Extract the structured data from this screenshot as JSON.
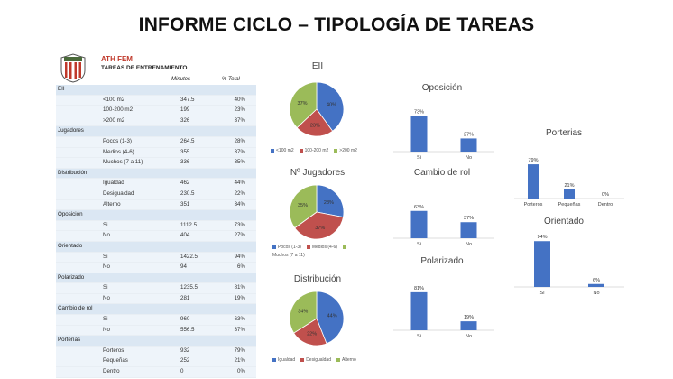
{
  "title": "INFORME CICLO – TIPOLOGÍA DE TAREAS",
  "colors": {
    "blue": "#4472c4",
    "red": "#c0504d",
    "green": "#9bbb59"
  },
  "table": {
    "team": "ATH FEM",
    "subtitle": "TAREAS DE ENTRENAMIENTO",
    "col_minutes": "Minutos",
    "col_total": "% Total",
    "groups": [
      {
        "name": "EII",
        "rows": [
          {
            "label": "<100 m2",
            "minutes": "347.5",
            "pct": "40%"
          },
          {
            "label": "100-200 m2",
            "minutes": "199",
            "pct": "23%"
          },
          {
            "label": ">200 m2",
            "minutes": "326",
            "pct": "37%"
          }
        ]
      },
      {
        "name": "Jugadores",
        "rows": [
          {
            "label": "Pocos (1-3)",
            "minutes": "264.5",
            "pct": "28%"
          },
          {
            "label": "Medios (4-6)",
            "minutes": "355",
            "pct": "37%"
          },
          {
            "label": "Muchos (7 a 11)",
            "minutes": "336",
            "pct": "35%"
          }
        ]
      },
      {
        "name": "Distribución",
        "rows": [
          {
            "label": "Igualdad",
            "minutes": "462",
            "pct": "44%"
          },
          {
            "label": "Desigualdad",
            "minutes": "230.5",
            "pct": "22%"
          },
          {
            "label": "Alterno",
            "minutes": "351",
            "pct": "34%"
          }
        ]
      },
      {
        "name": "Oposición",
        "rows": [
          {
            "label": "Si",
            "minutes": "1112.5",
            "pct": "73%"
          },
          {
            "label": "No",
            "minutes": "404",
            "pct": "27%"
          }
        ]
      },
      {
        "name": "Orientado",
        "rows": [
          {
            "label": "Si",
            "minutes": "1422.5",
            "pct": "94%"
          },
          {
            "label": "No",
            "minutes": "94",
            "pct": "6%"
          }
        ]
      },
      {
        "name": "Polarizado",
        "rows": [
          {
            "label": "Si",
            "minutes": "1235.5",
            "pct": "81%"
          },
          {
            "label": "No",
            "minutes": "281",
            "pct": "19%"
          }
        ]
      },
      {
        "name": "Cambio de rol",
        "rows": [
          {
            "label": "Si",
            "minutes": "960",
            "pct": "63%"
          },
          {
            "label": "No",
            "minutes": "556.5",
            "pct": "37%"
          }
        ]
      },
      {
        "name": "Porterías",
        "rows": [
          {
            "label": "Porteros",
            "minutes": "932",
            "pct": "79%"
          },
          {
            "label": "Pequeñas",
            "minutes": "252",
            "pct": "21%"
          },
          {
            "label": "Dentro",
            "minutes": "0",
            "pct": "0%"
          }
        ]
      }
    ]
  },
  "chart_data": [
    {
      "type": "pie",
      "title": "EII",
      "categories": [
        "<100 m2",
        "100-200 m2",
        ">200 m2"
      ],
      "values": [
        40,
        23,
        37
      ],
      "labels": [
        "40%",
        "23%",
        "37%"
      ],
      "legend": "bottom"
    },
    {
      "type": "pie",
      "title": "Nº Jugadores",
      "categories": [
        "Pocos (1-3)",
        "Medios (4-6)",
        "Muchos (7 a 11)"
      ],
      "values": [
        28,
        37,
        35
      ],
      "labels": [
        "28%",
        "37%",
        "35%"
      ],
      "legend": "bottom"
    },
    {
      "type": "pie",
      "title": "Distribución",
      "categories": [
        "Igualdad",
        "Desigualdad",
        "Alterno"
      ],
      "values": [
        44,
        22,
        34
      ],
      "labels": [
        "44%",
        "22%",
        "34%"
      ],
      "legend": "bottom"
    },
    {
      "type": "bar",
      "title": "Oposición",
      "categories": [
        "Si",
        "No"
      ],
      "values": [
        73,
        27
      ],
      "labels": [
        "73%",
        "27%"
      ],
      "ylim": [
        0,
        100
      ]
    },
    {
      "type": "bar",
      "title": "Cambio de rol",
      "categories": [
        "Si",
        "No"
      ],
      "values": [
        63,
        37
      ],
      "labels": [
        "63%",
        "37%"
      ],
      "ylim": [
        0,
        100
      ]
    },
    {
      "type": "bar",
      "title": "Polarizado",
      "categories": [
        "Si",
        "No"
      ],
      "values": [
        81,
        19
      ],
      "labels": [
        "81%",
        "19%"
      ],
      "ylim": [
        0,
        100
      ]
    },
    {
      "type": "bar",
      "title": "Porterias",
      "categories": [
        "Porteros",
        "Pequeñas",
        "Dentro"
      ],
      "values": [
        79,
        21,
        0
      ],
      "labels": [
        "79%",
        "21%",
        "0%"
      ],
      "ylim": [
        0,
        100
      ]
    },
    {
      "type": "bar",
      "title": "Orientado",
      "categories": [
        "Si",
        "No"
      ],
      "values": [
        94,
        6
      ],
      "labels": [
        "94%",
        "6%"
      ],
      "ylim": [
        0,
        100
      ]
    }
  ]
}
